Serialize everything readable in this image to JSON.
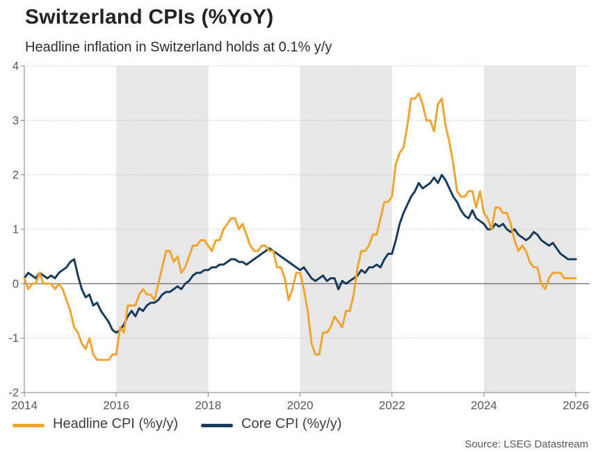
{
  "header": {
    "title": "Switzerland CPIs (%YoY)",
    "subtitle": "Headline inflation in Switzerland holds at 0.1% y/y"
  },
  "source": "Source: LSEG Datastream",
  "colors": {
    "headline": "#F0A432",
    "core": "#1A3A5C",
    "band": "#E7E7E7",
    "grid": "#C9C9C9",
    "zero_line": "#58595B",
    "axis": "#7F8183",
    "tick_text": "#57585A"
  },
  "legend": [
    {
      "label": "Headline CPI (%y/y)",
      "color": "#F0A432"
    },
    {
      "label": "Core CPI (%y/y)",
      "color": "#1A3A5C"
    }
  ],
  "chart_data": {
    "type": "line",
    "title": "Switzerland CPIs (%YoY)",
    "subtitle": "Headline inflation in Switzerland holds at 0.1% y/y",
    "frequency": "monthly",
    "x_start": "2014-01",
    "x_end": "2026-01",
    "xlim": [
      2014,
      2026.3
    ],
    "ylim": [
      -2,
      4
    ],
    "y_ticks": [
      4,
      3,
      2,
      1,
      0,
      -1,
      -2
    ],
    "y_tick_labels": [
      "4",
      "3",
      "2",
      "1",
      "0",
      "-1",
      "-2"
    ],
    "x_tick_years": [
      2014,
      2016,
      2018,
      2020,
      2022,
      2024,
      2026
    ],
    "x_tick_labels": [
      "2014",
      "2016",
      "2018",
      "2020",
      "2022",
      "2024",
      "2026"
    ],
    "shaded_bands_years": [
      [
        2016,
        2018
      ],
      [
        2020,
        2022
      ],
      [
        2024,
        2026
      ]
    ],
    "grid": "horizontal-dashed",
    "zero_line": true,
    "legend_position": "bottom",
    "series": [
      {
        "name": "Headline CPI (%y/y)",
        "color": "#F0A432",
        "values": [
          0.1,
          -0.1,
          0.0,
          0.0,
          0.2,
          0.0,
          0.0,
          0.0,
          -0.1,
          0.0,
          -0.1,
          -0.3,
          -0.5,
          -0.8,
          -0.9,
          -1.1,
          -1.2,
          -1.0,
          -1.3,
          -1.4,
          -1.4,
          -1.4,
          -1.4,
          -1.3,
          -1.3,
          -0.8,
          -0.9,
          -0.4,
          -0.4,
          -0.4,
          -0.2,
          -0.1,
          -0.2,
          -0.2,
          -0.3,
          0.0,
          0.3,
          0.6,
          0.6,
          0.4,
          0.5,
          0.2,
          0.3,
          0.5,
          0.7,
          0.7,
          0.8,
          0.8,
          0.7,
          0.6,
          0.8,
          0.8,
          1.0,
          1.1,
          1.2,
          1.2,
          1.0,
          1.1,
          0.9,
          0.7,
          0.6,
          0.6,
          0.7,
          0.7,
          0.6,
          0.6,
          0.3,
          0.3,
          0.1,
          -0.3,
          -0.1,
          0.2,
          0.2,
          -0.1,
          -0.5,
          -1.1,
          -1.3,
          -1.3,
          -0.9,
          -0.9,
          -0.8,
          -0.6,
          -0.7,
          -0.8,
          -0.5,
          -0.5,
          -0.2,
          0.3,
          0.6,
          0.6,
          0.7,
          0.9,
          0.9,
          1.2,
          1.5,
          1.5,
          1.6,
          2.2,
          2.4,
          2.5,
          2.9,
          3.4,
          3.4,
          3.5,
          3.3,
          3.0,
          3.0,
          2.8,
          3.3,
          3.4,
          2.9,
          2.6,
          2.2,
          1.7,
          1.6,
          1.6,
          1.7,
          1.7,
          1.4,
          1.7,
          1.3,
          1.2,
          1.0,
          1.4,
          1.4,
          1.3,
          1.3,
          1.1,
          0.8,
          0.6,
          0.7,
          0.6,
          0.4,
          0.3,
          0.3,
          0.0,
          -0.1,
          0.1,
          0.2,
          0.2,
          0.2,
          0.1,
          0.1,
          0.1,
          0.1
        ]
      },
      {
        "name": "Core CPI (%y/y)",
        "color": "#1A3A5C",
        "values": [
          0.1,
          0.2,
          0.15,
          0.1,
          0.2,
          0.15,
          0.1,
          0.15,
          0.1,
          0.2,
          0.25,
          0.3,
          0.4,
          0.45,
          0.15,
          -0.1,
          -0.25,
          -0.2,
          -0.4,
          -0.35,
          -0.5,
          -0.6,
          -0.7,
          -0.85,
          -0.9,
          -0.85,
          -0.75,
          -0.6,
          -0.5,
          -0.6,
          -0.45,
          -0.5,
          -0.4,
          -0.35,
          -0.35,
          -0.3,
          -0.2,
          -0.15,
          -0.15,
          -0.1,
          -0.05,
          -0.1,
          0.0,
          0.05,
          0.15,
          0.2,
          0.2,
          0.25,
          0.25,
          0.3,
          0.3,
          0.35,
          0.35,
          0.4,
          0.45,
          0.45,
          0.4,
          0.4,
          0.35,
          0.4,
          0.45,
          0.5,
          0.55,
          0.6,
          0.65,
          0.6,
          0.55,
          0.5,
          0.45,
          0.4,
          0.35,
          0.3,
          0.25,
          0.3,
          0.2,
          0.1,
          0.05,
          0.1,
          0.15,
          0.05,
          0.1,
          0.1,
          -0.1,
          0.05,
          0.0,
          0.05,
          0.1,
          0.15,
          0.25,
          0.2,
          0.3,
          0.3,
          0.35,
          0.3,
          0.45,
          0.55,
          0.55,
          0.8,
          1.1,
          1.3,
          1.45,
          1.6,
          1.7,
          1.85,
          1.75,
          1.8,
          1.85,
          1.95,
          1.85,
          2.0,
          1.9,
          1.75,
          1.6,
          1.5,
          1.35,
          1.25,
          1.2,
          1.35,
          1.2,
          1.15,
          1.1,
          1.0,
          1.0,
          1.1,
          1.05,
          1.1,
          1.0,
          0.95,
          1.0,
          0.9,
          0.85,
          0.8,
          0.85,
          0.95,
          0.9,
          0.8,
          0.75,
          0.7,
          0.75,
          0.65,
          0.55,
          0.5,
          0.45,
          0.45,
          0.45
        ]
      }
    ]
  }
}
